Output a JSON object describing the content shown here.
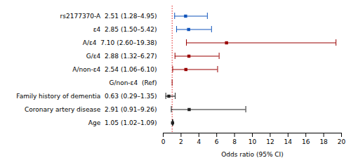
{
  "chart_data": {
    "type": "forest",
    "xlabel": "Odds ratio (95% CI)",
    "categories": [
      "rs2177370-A  2.51 (1.28–4.95)",
      "ε4  2.85 (1.50–5.42)",
      "A/ε4  7.10 (2.60–19.38)",
      "G/ε4  2.88 (1.32–6.27)",
      "A/non-ε4  2.54 (1.06–6.10)",
      "G/non-ε4  (Ref)",
      "Family history of dementia  0.63 (0.29–1.35)",
      "Coronary artery disease  2.91 (0.91–9.26)",
      "Age  1.05 (1.02–1.09)"
    ],
    "values": [
      2.51,
      2.85,
      7.1,
      2.88,
      2.54,
      null,
      0.63,
      2.91,
      1.05
    ],
    "ci_low": [
      1.28,
      1.5,
      2.6,
      1.32,
      1.06,
      null,
      0.29,
      0.91,
      1.02
    ],
    "ci_high": [
      4.95,
      5.42,
      19.38,
      6.27,
      6.1,
      null,
      1.35,
      9.26,
      1.09
    ],
    "colors": [
      "#1155bb",
      "#1155bb",
      "#990000",
      "#990000",
      "#990000",
      "#990000",
      "#222222",
      "#222222",
      "#222222"
    ],
    "reference": [
      false,
      false,
      false,
      false,
      false,
      true,
      false,
      false,
      false
    ],
    "reference_line": {
      "value": 1.0,
      "color": "#dd0000"
    },
    "xlim": [
      0,
      20
    ],
    "xticks": [
      0,
      2,
      4,
      6,
      8,
      10,
      12,
      14,
      16,
      18,
      20
    ]
  }
}
